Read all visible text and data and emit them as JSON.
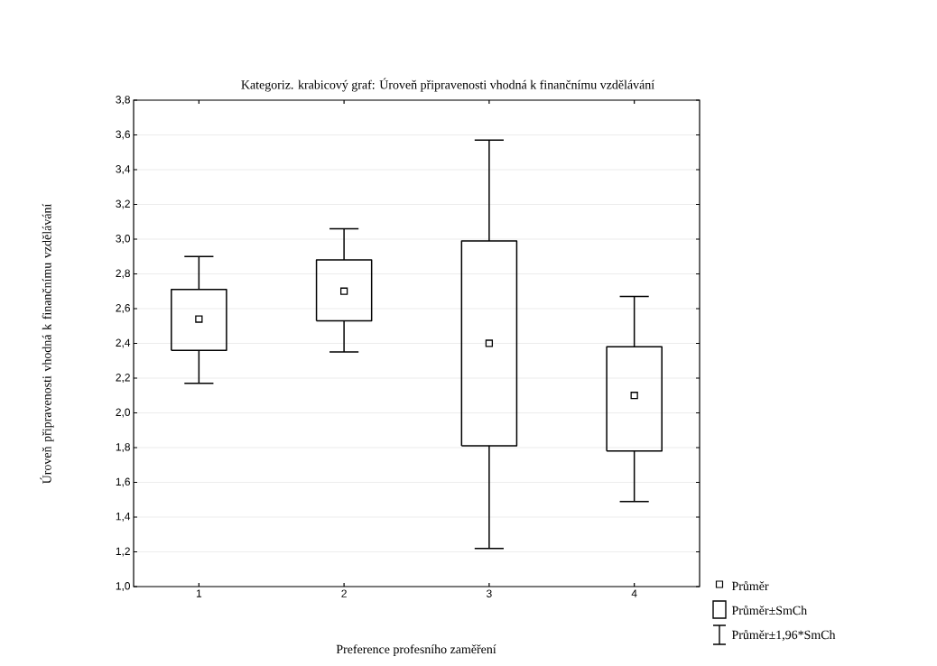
{
  "chart_data": {
    "type": "box",
    "title": "Kategoriz. krabicový graf: Úroveň připravenosti vhodná k finančnímu vzdělávání",
    "xlabel": "Preference profesního zaměření",
    "ylabel": "Úroveň připravenosti vhodná k finančnímu vzdělávání",
    "categories": [
      "1",
      "2",
      "3",
      "4"
    ],
    "boxes": [
      {
        "low": 2.17,
        "q1": 2.36,
        "q3": 2.71,
        "high": 2.9,
        "mean": 2.54
      },
      {
        "low": 2.35,
        "q1": 2.53,
        "q3": 2.88,
        "high": 3.06,
        "mean": 2.7
      },
      {
        "low": 1.22,
        "q1": 1.81,
        "q3": 2.99,
        "high": 3.57,
        "mean": 2.4
      },
      {
        "low": 1.49,
        "q1": 1.78,
        "q3": 2.38,
        "high": 2.67,
        "mean": 2.1
      }
    ],
    "color": "#000000",
    "ylim": [
      1.0,
      3.8
    ],
    "yticks": [
      {
        "value": 1.0,
        "label": "1,0"
      },
      {
        "value": 1.2,
        "label": "1,2"
      },
      {
        "value": 1.4,
        "label": "1,4"
      },
      {
        "value": 1.6,
        "label": "1,6"
      },
      {
        "value": 1.8,
        "label": "1,8"
      },
      {
        "value": 2.0,
        "label": "2,0"
      },
      {
        "value": 2.2,
        "label": "2,2"
      },
      {
        "value": 2.4,
        "label": "2,4"
      },
      {
        "value": 2.6,
        "label": "2,6"
      },
      {
        "value": 2.8,
        "label": "2,8"
      },
      {
        "value": 3.0,
        "label": "3,0"
      },
      {
        "value": 3.2,
        "label": "3,2"
      },
      {
        "value": 3.4,
        "label": "3,4"
      },
      {
        "value": 3.6,
        "label": "3,6"
      },
      {
        "value": 3.8,
        "label": "3,8"
      }
    ],
    "grid": "y",
    "marker": "square",
    "annotations": [
      "Průměr",
      "Průměr±SmCh",
      "Průměr±1,96*SmCh"
    ]
  }
}
